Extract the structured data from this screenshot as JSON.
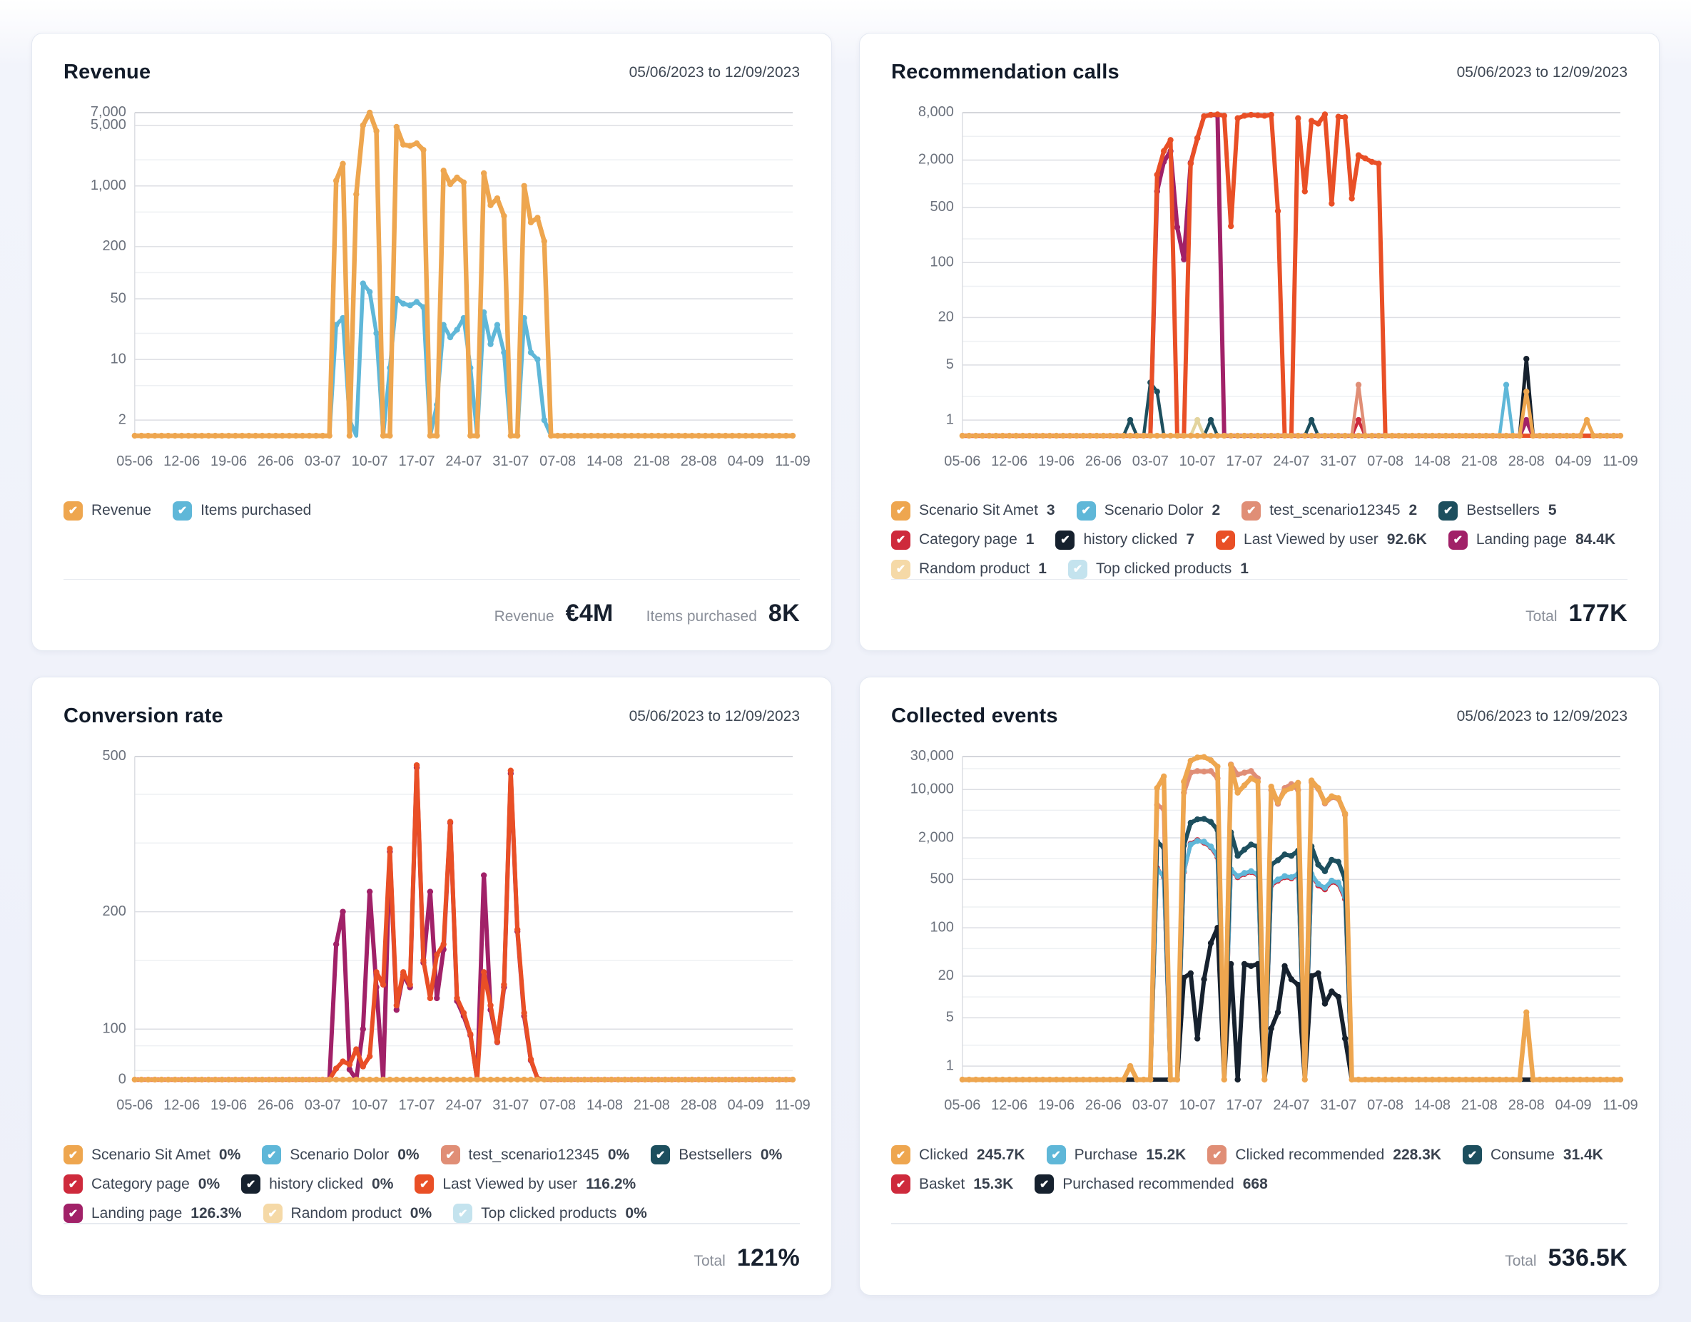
{
  "cards": [
    {
      "title": "Revenue",
      "date_range": "05/06/2023 to 12/09/2023",
      "legend": [
        {
          "label": "Revenue",
          "value": "",
          "color": "#EEA64F"
        },
        {
          "label": "Items purchased",
          "value": "",
          "color": "#5FB7D8"
        }
      ],
      "footer": [
        {
          "label": "Revenue",
          "value": "€4M"
        },
        {
          "label": "Items purchased",
          "value": "8K"
        }
      ]
    },
    {
      "title": "Recommendation calls",
      "date_range": "05/06/2023 to 12/09/2023",
      "legend": [
        {
          "label": "Scenario Sit Amet",
          "value": "3",
          "color": "#EEA64F"
        },
        {
          "label": "Scenario Dolor",
          "value": "2",
          "color": "#5FB7D8"
        },
        {
          "label": "test_scenario12345",
          "value": "2",
          "color": "#E08E76"
        },
        {
          "label": "Bestsellers",
          "value": "5",
          "color": "#1D4F5E"
        },
        {
          "label": "Category page",
          "value": "1",
          "color": "#CE2A3C"
        },
        {
          "label": "history clicked",
          "value": "7",
          "color": "#16212E"
        },
        {
          "label": "Last Viewed by user",
          "value": "92.6K",
          "color": "#E94F26"
        },
        {
          "label": "Landing page",
          "value": "84.4K",
          "color": "#A12168"
        },
        {
          "label": "Random product",
          "value": "1",
          "color": "#F5D9A7"
        },
        {
          "label": "Top clicked products",
          "value": "1",
          "color": "#C4E3EE"
        }
      ],
      "footer": [
        {
          "label": "Total",
          "value": "177K"
        }
      ]
    },
    {
      "title": "Conversion rate",
      "date_range": "05/06/2023 to 12/09/2023",
      "legend": [
        {
          "label": "Scenario Sit Amet",
          "value": "0%",
          "color": "#EEA64F"
        },
        {
          "label": "Scenario Dolor",
          "value": "0%",
          "color": "#5FB7D8"
        },
        {
          "label": "test_scenario12345",
          "value": "0%",
          "color": "#E08E76"
        },
        {
          "label": "Bestsellers",
          "value": "0%",
          "color": "#1D4F5E"
        },
        {
          "label": "Category page",
          "value": "0%",
          "color": "#CE2A3C"
        },
        {
          "label": "history clicked",
          "value": "0%",
          "color": "#16212E"
        },
        {
          "label": "Last Viewed by user",
          "value": "116.2%",
          "color": "#E94F26"
        },
        {
          "label": "Landing page",
          "value": "126.3%",
          "color": "#A12168"
        },
        {
          "label": "Random product",
          "value": "0%",
          "color": "#F5D9A7"
        },
        {
          "label": "Top clicked products",
          "value": "0%",
          "color": "#C4E3EE"
        }
      ],
      "footer": [
        {
          "label": "Total",
          "value": "121%"
        }
      ]
    },
    {
      "title": "Collected events",
      "date_range": "05/06/2023 to 12/09/2023",
      "legend": [
        {
          "label": "Clicked",
          "value": "245.7K",
          "color": "#EEA64F"
        },
        {
          "label": "Purchase",
          "value": "15.2K",
          "color": "#5FB7D8"
        },
        {
          "label": "Clicked recommended",
          "value": "228.3K",
          "color": "#E08E76"
        },
        {
          "label": "Consume",
          "value": "31.4K",
          "color": "#1D4F5E"
        },
        {
          "label": "Basket",
          "value": "15.3K",
          "color": "#CE2A3C"
        },
        {
          "label": "Purchased recommended",
          "value": "668",
          "color": "#16212E"
        }
      ],
      "footer": [
        {
          "label": "Total",
          "value": "536.5K"
        }
      ]
    }
  ],
  "chart_data": [
    {
      "type": "line",
      "title": "Revenue",
      "yscale": "log",
      "ymax": 7000,
      "ymin_tick": 2,
      "baseline_gap": 22,
      "yticks_labeled": [
        7000,
        5000,
        1000,
        200,
        50,
        10,
        2
      ],
      "yticks_light": [
        2000,
        500,
        100,
        20,
        5
      ],
      "n": 99,
      "label_every": 7,
      "x_labels": [
        "05-06",
        "12-06",
        "19-06",
        "26-06",
        "03-07",
        "10-07",
        "17-07",
        "24-07",
        "31-07",
        "07-08",
        "14-08",
        "21-08",
        "28-08",
        "04-09",
        "11-09"
      ],
      "series": [
        {
          "name": "Items purchased",
          "color": "#5FB7D8",
          "width": 5.5,
          "default": 0,
          "points": {
            "30": 25,
            "31": 30,
            "32": 2,
            "34": 75,
            "35": 60,
            "36": 20,
            "38": 8,
            "39": 50,
            "40": 44,
            "41": 42,
            "42": 46,
            "43": 40,
            "45": 3,
            "46": 25,
            "47": 18,
            "48": 22,
            "49": 30,
            "50": 8,
            "52": 35,
            "53": 15,
            "54": 25,
            "55": 12,
            "58": 30,
            "59": 12,
            "60": 10,
            "61": 2
          }
        },
        {
          "name": "Revenue",
          "color": "#EEA64F",
          "width": 6.5,
          "default": 0,
          "baseline_dots": true,
          "points": {
            "30": 1150,
            "31": 1800,
            "33": 800,
            "34": 5000,
            "35": 7000,
            "36": 4300,
            "39": 4800,
            "40": 3000,
            "41": 2900,
            "42": 3100,
            "43": 2600,
            "46": 1500,
            "47": 1050,
            "48": 1250,
            "49": 1100,
            "52": 1400,
            "53": 600,
            "54": 720,
            "55": 450,
            "58": 1000,
            "59": 380,
            "60": 430,
            "61": 230
          }
        }
      ]
    },
    {
      "type": "line",
      "title": "Recommendation calls",
      "yscale": "log",
      "ymax": 8000,
      "ymin_tick": 1,
      "baseline_gap": 22,
      "yticks_labeled": [
        8000,
        2000,
        500,
        100,
        20,
        5,
        1
      ],
      "yticks_light": [
        4000,
        1000,
        200,
        50,
        10,
        2
      ],
      "n": 99,
      "label_every": 7,
      "x_labels": [
        "05-06",
        "12-06",
        "19-06",
        "26-06",
        "03-07",
        "10-07",
        "17-07",
        "24-07",
        "31-07",
        "07-08",
        "14-08",
        "21-08",
        "28-08",
        "04-09",
        "11-09"
      ],
      "series": [
        {
          "name": "Top clicked products",
          "color": "#C4E3EE",
          "width": 4.5,
          "default": 0,
          "points": {}
        },
        {
          "name": "Scenario Dolor",
          "color": "#5FB7D8",
          "width": 4.5,
          "default": 0,
          "points": {
            "81": 2.8
          }
        },
        {
          "name": "Bestsellers",
          "color": "#1D4F5E",
          "width": 4.5,
          "default": 0,
          "points": {
            "25": 1,
            "28": 3,
            "29": 2.3,
            "37": 1,
            "52": 1
          }
        },
        {
          "name": "Random product",
          "color": "#E3D49E",
          "width": 4.5,
          "default": 0,
          "points": {
            "35": 1
          }
        },
        {
          "name": "Category page",
          "color": "#CE2A3C",
          "width": 4.5,
          "default": 0,
          "points": {
            "59": 1
          }
        },
        {
          "name": "test_scenario12345",
          "color": "#E08E76",
          "width": 4.5,
          "default": 0,
          "points": {
            "59": 2.8
          }
        },
        {
          "name": "history clicked",
          "color": "#16212E",
          "width": 5,
          "default": 0,
          "points": {
            "84": 6
          }
        },
        {
          "name": "Landing page",
          "color": "#A12168",
          "width": 6,
          "default": 0,
          "points": {
            "29": 800,
            "30": 1900,
            "31": 2600,
            "32": 280,
            "33": 110,
            "34": 1850,
            "35": 3800,
            "36": 7200,
            "37": 7500,
            "38": 7400,
            "84": 1
          }
        },
        {
          "name": "Last Viewed by user",
          "color": "#E94F26",
          "width": 6,
          "default": 0,
          "points": {
            "29": 1300,
            "30": 2600,
            "31": 3600,
            "34": 1800,
            "35": 3800,
            "36": 7200,
            "37": 7500,
            "38": 7600,
            "39": 7300,
            "40": 290,
            "41": 6800,
            "42": 7300,
            "43": 7500,
            "44": 7400,
            "45": 7300,
            "46": 7500,
            "47": 450,
            "50": 6800,
            "51": 800,
            "52": 6300,
            "53": 5800,
            "54": 7600,
            "55": 560,
            "56": 7100,
            "57": 7000,
            "58": 650,
            "59": 2300,
            "60": 2100,
            "61": 1900,
            "62": 1800
          }
        },
        {
          "name": "Scenario Sit Amet",
          "color": "#EEA64F",
          "width": 5,
          "default": 0,
          "baseline_dots": true,
          "points": {
            "84": 2.3,
            "93": 1
          }
        }
      ]
    },
    {
      "type": "line",
      "title": "Conversion rate",
      "yscale": "log-above-100-linear-below",
      "ymax": 500,
      "ymin_tick": 100,
      "baseline_gap": 71,
      "linear_below": 100,
      "zero_label": true,
      "yticks_labeled": [
        500,
        200,
        100
      ],
      "yticks_light": [
        400,
        300,
        150,
        67,
        18
      ],
      "n": 99,
      "label_every": 7,
      "x_labels": [
        "05-06",
        "12-06",
        "19-06",
        "26-06",
        "03-07",
        "10-07",
        "17-07",
        "24-07",
        "31-07",
        "07-08",
        "14-08",
        "21-08",
        "28-08",
        "04-09",
        "11-09"
      ],
      "series": [
        {
          "name": "Scenario Dolor",
          "color": "#5FB7D8",
          "width": 4.5,
          "default": 0,
          "points": {}
        },
        {
          "name": "test_scenario12345",
          "color": "#E08E76",
          "width": 4.5,
          "default": 0,
          "points": {}
        },
        {
          "name": "Bestsellers",
          "color": "#1D4F5E",
          "width": 4.5,
          "default": 0,
          "points": {}
        },
        {
          "name": "Category page",
          "color": "#CE2A3C",
          "width": 4.5,
          "default": 0,
          "points": {}
        },
        {
          "name": "history clicked",
          "color": "#16212E",
          "width": 4.5,
          "default": 0,
          "points": {}
        },
        {
          "name": "Random product",
          "color": "#F5D9A7",
          "width": 4.5,
          "default": 0,
          "points": {}
        },
        {
          "name": "Top clicked products",
          "color": "#C4E3EE",
          "width": 4.5,
          "default": 0,
          "points": {}
        },
        {
          "name": "Landing page",
          "color": "#A12168",
          "width": 6,
          "default": 0,
          "points": {
            "30": 165,
            "31": 200,
            "32": 20,
            "34": 100,
            "35": 225,
            "36": 128,
            "38": 285,
            "39": 112,
            "40": 138,
            "41": 128,
            "42": 468,
            "43": 148,
            "44": 225,
            "45": 120,
            "46": 160,
            "47": 338,
            "48": 118,
            "49": 108,
            "50": 88,
            "52": 248,
            "53": 112,
            "54": 74,
            "55": 128,
            "56": 452,
            "57": 178,
            "58": 108,
            "59": 38,
            "60": 2
          }
        },
        {
          "name": "Last Viewed by user",
          "color": "#E94F26",
          "width": 6,
          "default": 0,
          "points": {
            "30": 22,
            "31": 36,
            "32": 30,
            "33": 60,
            "34": 26,
            "35": 46,
            "36": 140,
            "37": 130,
            "38": 290,
            "39": 115,
            "40": 140,
            "41": 130,
            "42": 475,
            "43": 150,
            "44": 120,
            "45": 155,
            "46": 165,
            "47": 340,
            "48": 120,
            "49": 110,
            "50": 90,
            "52": 140,
            "53": 115,
            "54": 75,
            "55": 130,
            "56": 460,
            "57": 180,
            "58": 110,
            "59": 40,
            "60": 2
          }
        },
        {
          "name": "Scenario Sit Amet",
          "color": "#EEA64F",
          "width": 5,
          "default": 0,
          "baseline_dots": true,
          "points": {}
        }
      ]
    },
    {
      "type": "line",
      "title": "Collected events",
      "yscale": "log",
      "ymax": 30000,
      "ymin_tick": 1,
      "baseline_gap": 19,
      "yticks_labeled": [
        30000,
        10000,
        2000,
        500,
        100,
        20,
        5,
        1
      ],
      "yticks_light": [
        20000,
        5000,
        1000,
        200,
        50,
        10,
        2
      ],
      "n": 99,
      "label_every": 7,
      "x_labels": [
        "05-06",
        "12-06",
        "19-06",
        "26-06",
        "03-07",
        "10-07",
        "17-07",
        "24-07",
        "31-07",
        "07-08",
        "14-08",
        "21-08",
        "28-08",
        "04-09",
        "11-09"
      ],
      "series": [
        {
          "name": "Basket",
          "color": "#CE2A3C",
          "width": 5.5,
          "default": 0,
          "points": {
            "29": 730,
            "30": 540,
            "33": 640,
            "34": 1650,
            "35": 1850,
            "36": 1700,
            "37": 1460,
            "38": 1050,
            "40": 680,
            "41": 540,
            "42": 600,
            "43": 640,
            "44": 580,
            "46": 410,
            "47": 480,
            "48": 540,
            "49": 520,
            "50": 580,
            "52": 580,
            "53": 410,
            "54": 360,
            "55": 460,
            "56": 430,
            "57": 260
          }
        },
        {
          "name": "Purchase",
          "color": "#5FB7D8",
          "width": 5.5,
          "default": 0,
          "points": {
            "29": 700,
            "30": 560,
            "33": 660,
            "34": 1600,
            "35": 1800,
            "36": 1760,
            "37": 1500,
            "38": 1100,
            "40": 700,
            "41": 560,
            "42": 620,
            "43": 660,
            "44": 600,
            "46": 430,
            "47": 500,
            "48": 560,
            "49": 540,
            "50": 600,
            "52": 600,
            "53": 430,
            "54": 380,
            "55": 480,
            "56": 450,
            "57": 280
          }
        },
        {
          "name": "Consume",
          "color": "#1D4F5E",
          "width": 6,
          "default": 0,
          "points": {
            "29": 1750,
            "30": 1450,
            "33": 1550,
            "34": 3300,
            "35": 3700,
            "36": 3750,
            "37": 3400,
            "38": 2600,
            "40": 2400,
            "41": 1100,
            "42": 1350,
            "43": 1600,
            "44": 1500,
            "46": 820,
            "47": 950,
            "48": 1150,
            "49": 1100,
            "50": 1300,
            "52": 1500,
            "53": 820,
            "54": 660,
            "55": 960,
            "56": 900,
            "57": 500
          }
        },
        {
          "name": "Clicked recommended",
          "color": "#E08E76",
          "width": 6,
          "default": 0,
          "points": {
            "29": 6000,
            "30": 5200,
            "33": 9000,
            "34": 17500,
            "35": 18500,
            "36": 18200,
            "37": 18500,
            "38": 14500,
            "40": 23000,
            "41": 16500,
            "42": 17500,
            "43": 18500,
            "44": 14500,
            "46": 9800,
            "47": 6200,
            "48": 10500,
            "49": 12000,
            "50": 9800,
            "52": 12800,
            "53": 10200,
            "54": 6300,
            "55": 7700,
            "56": 7300,
            "57": 4300
          }
        },
        {
          "name": "Purchased recommended",
          "color": "#16212E",
          "width": 6,
          "default": 0,
          "points": {
            "33": 19,
            "34": 22,
            "35": 2.5,
            "36": 18,
            "37": 60,
            "38": 100,
            "40": 30,
            "41": 0.6,
            "42": 30,
            "43": 28,
            "44": 30,
            "46": 3.5,
            "47": 6,
            "48": 28,
            "49": 18,
            "50": 15,
            "52": 20,
            "53": 22,
            "54": 8,
            "55": 12,
            "56": 10,
            "57": 2.5
          }
        },
        {
          "name": "Clicked",
          "color": "#EEA64F",
          "width": 6.5,
          "default": 0,
          "baseline_dots": true,
          "points": {
            "25": 1,
            "29": 10500,
            "30": 15500,
            "33": 13000,
            "34": 26000,
            "35": 29000,
            "36": 29500,
            "37": 26500,
            "38": 21500,
            "40": 22500,
            "41": 9000,
            "42": 11500,
            "43": 14500,
            "44": 13000,
            "46": 11000,
            "47": 6500,
            "48": 9500,
            "49": 10500,
            "50": 12500,
            "52": 13500,
            "53": 10500,
            "54": 6500,
            "55": 8000,
            "56": 7500,
            "57": 4500,
            "84": 6
          }
        }
      ]
    }
  ]
}
